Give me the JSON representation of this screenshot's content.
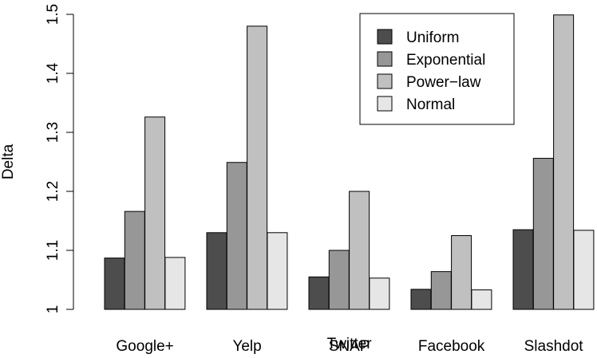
{
  "chart_data": {
    "type": "bar",
    "title": "",
    "xlabel": "",
    "ylabel": "Delta",
    "ylim": [
      1.0,
      1.5
    ],
    "yticks": [
      1.0,
      1.1,
      1.2,
      1.3,
      1.4,
      1.5
    ],
    "ytick_labels": [
      "1",
      "1.1",
      "1.2",
      "1.3",
      "1.4",
      "1.5"
    ],
    "categories": [
      "Google+",
      "Yelp",
      "Twitter\nSNAP",
      "Facebook",
      "Slashdot"
    ],
    "category_lines": [
      [
        "Google+"
      ],
      [
        "Yelp"
      ],
      [
        "Twitter",
        "SNAP"
      ],
      [
        "Facebook"
      ],
      [
        "Slashdot"
      ]
    ],
    "series": [
      {
        "name": "Uniform",
        "color": "#4d4d4d",
        "values": [
          1.087,
          1.13,
          1.055,
          1.034,
          1.135
        ]
      },
      {
        "name": "Exponential",
        "color": "#979797",
        "values": [
          1.166,
          1.249,
          1.1,
          1.064,
          1.256
        ]
      },
      {
        "name": "Power−law",
        "color": "#c0c0c0",
        "values": [
          1.326,
          1.48,
          1.2,
          1.125,
          1.499
        ]
      },
      {
        "name": "Normal",
        "color": "#e6e6e6",
        "values": [
          1.088,
          1.13,
          1.053,
          1.033,
          1.134
        ]
      }
    ],
    "legend_position": "top-right",
    "grid": false
  }
}
